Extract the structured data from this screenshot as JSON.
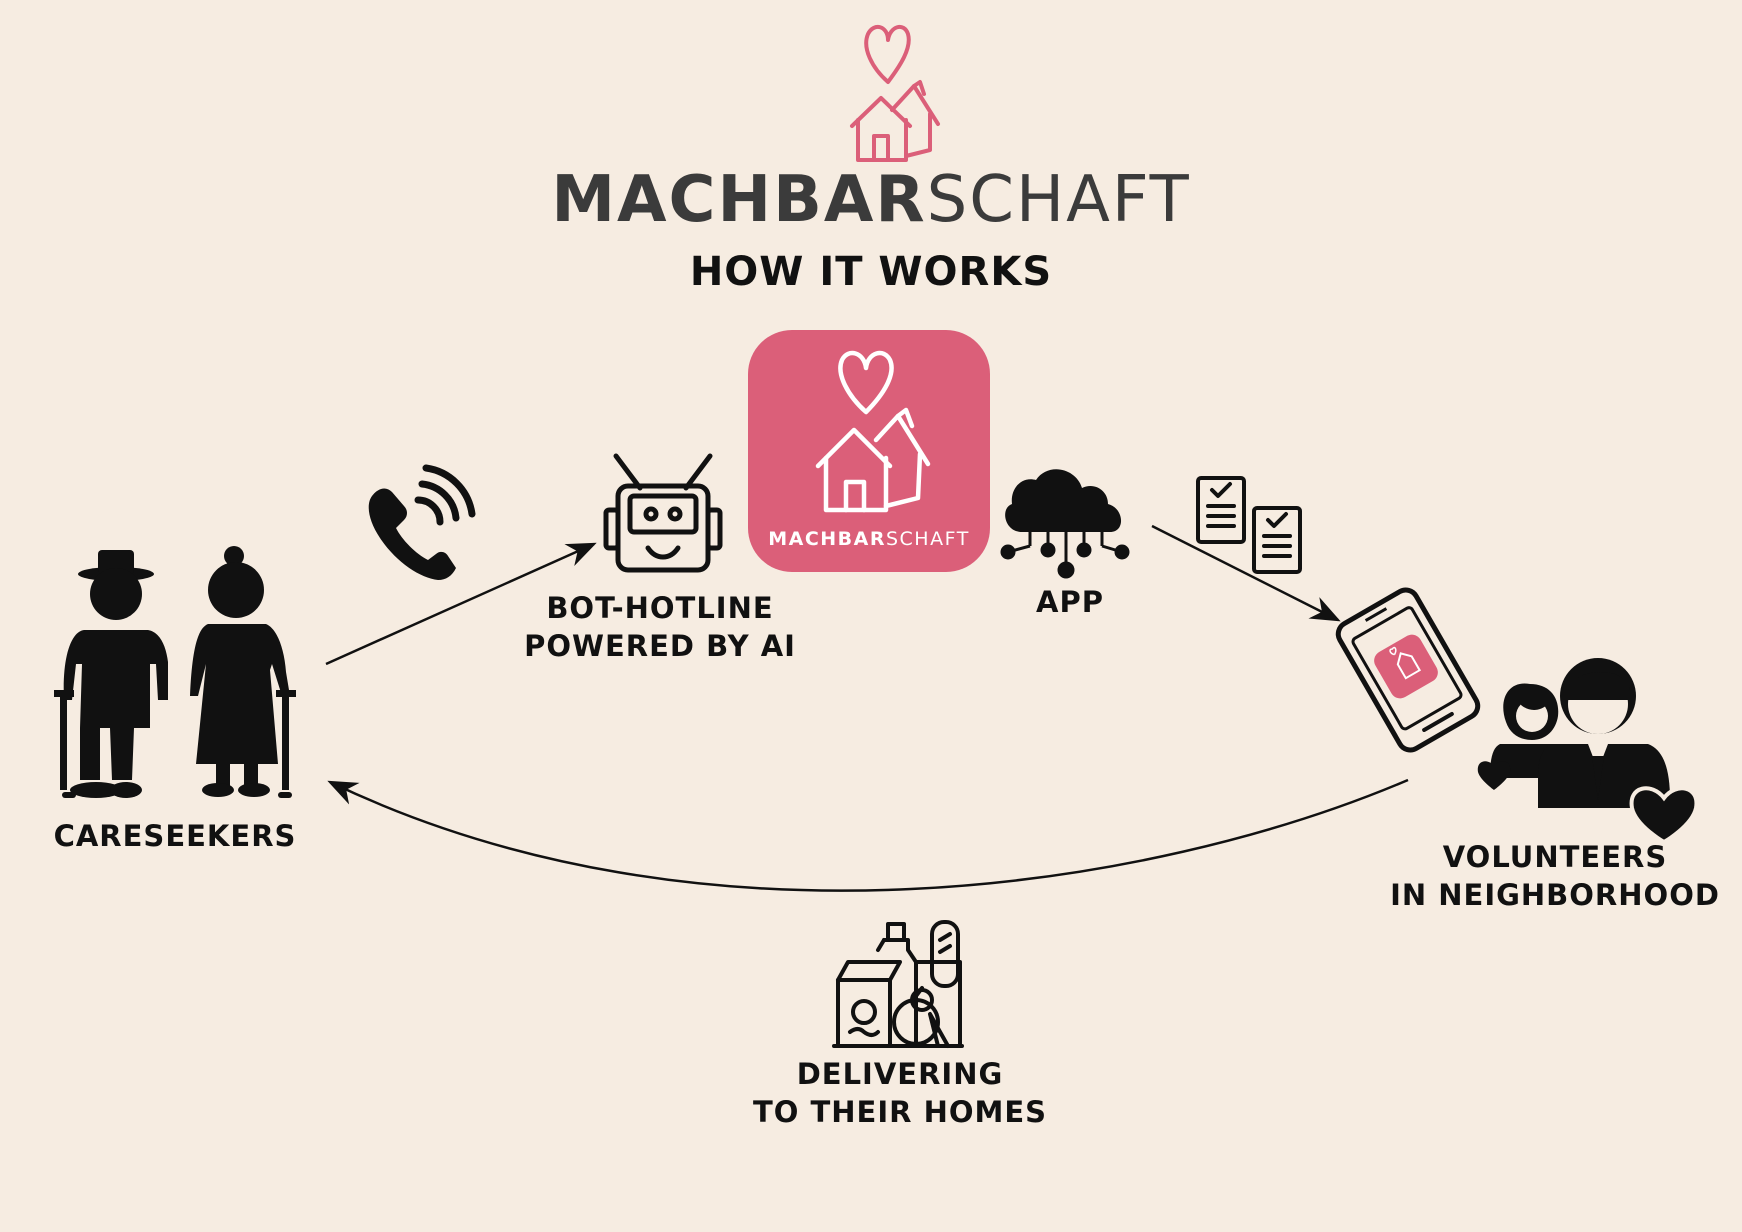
{
  "brand": {
    "name_bold": "MACHBAR",
    "name_light": "SCHAFT"
  },
  "title": "HOW IT WORKS",
  "app_tile": {
    "name_bold": "MACHBAR",
    "name_light": "SCHAFT"
  },
  "nodes": {
    "careseekers": {
      "label": "CARESEEKERS"
    },
    "bot_hotline": {
      "line1": "BOT-HOTLINE",
      "line2": "POWERED BY AI"
    },
    "app": {
      "label": "APP"
    },
    "volunteers": {
      "line1": "VOLUNTEERS",
      "line2": "IN NEIGHBORHOOD"
    },
    "delivering": {
      "line1": "DELIVERING",
      "line2": "TO THEIR HOMES"
    }
  },
  "colors": {
    "background": "#f6ece1",
    "brand_pink": "#db5f79",
    "text": "#111111",
    "wordmark": "#3b3b3b"
  },
  "icons": [
    "heart-house-logo-icon",
    "phone-call-icon",
    "robot-icon",
    "cloud-network-icon",
    "checklist-icon",
    "smartphone-icon",
    "elderly-couple-icon",
    "volunteers-icon",
    "groceries-icon"
  ]
}
